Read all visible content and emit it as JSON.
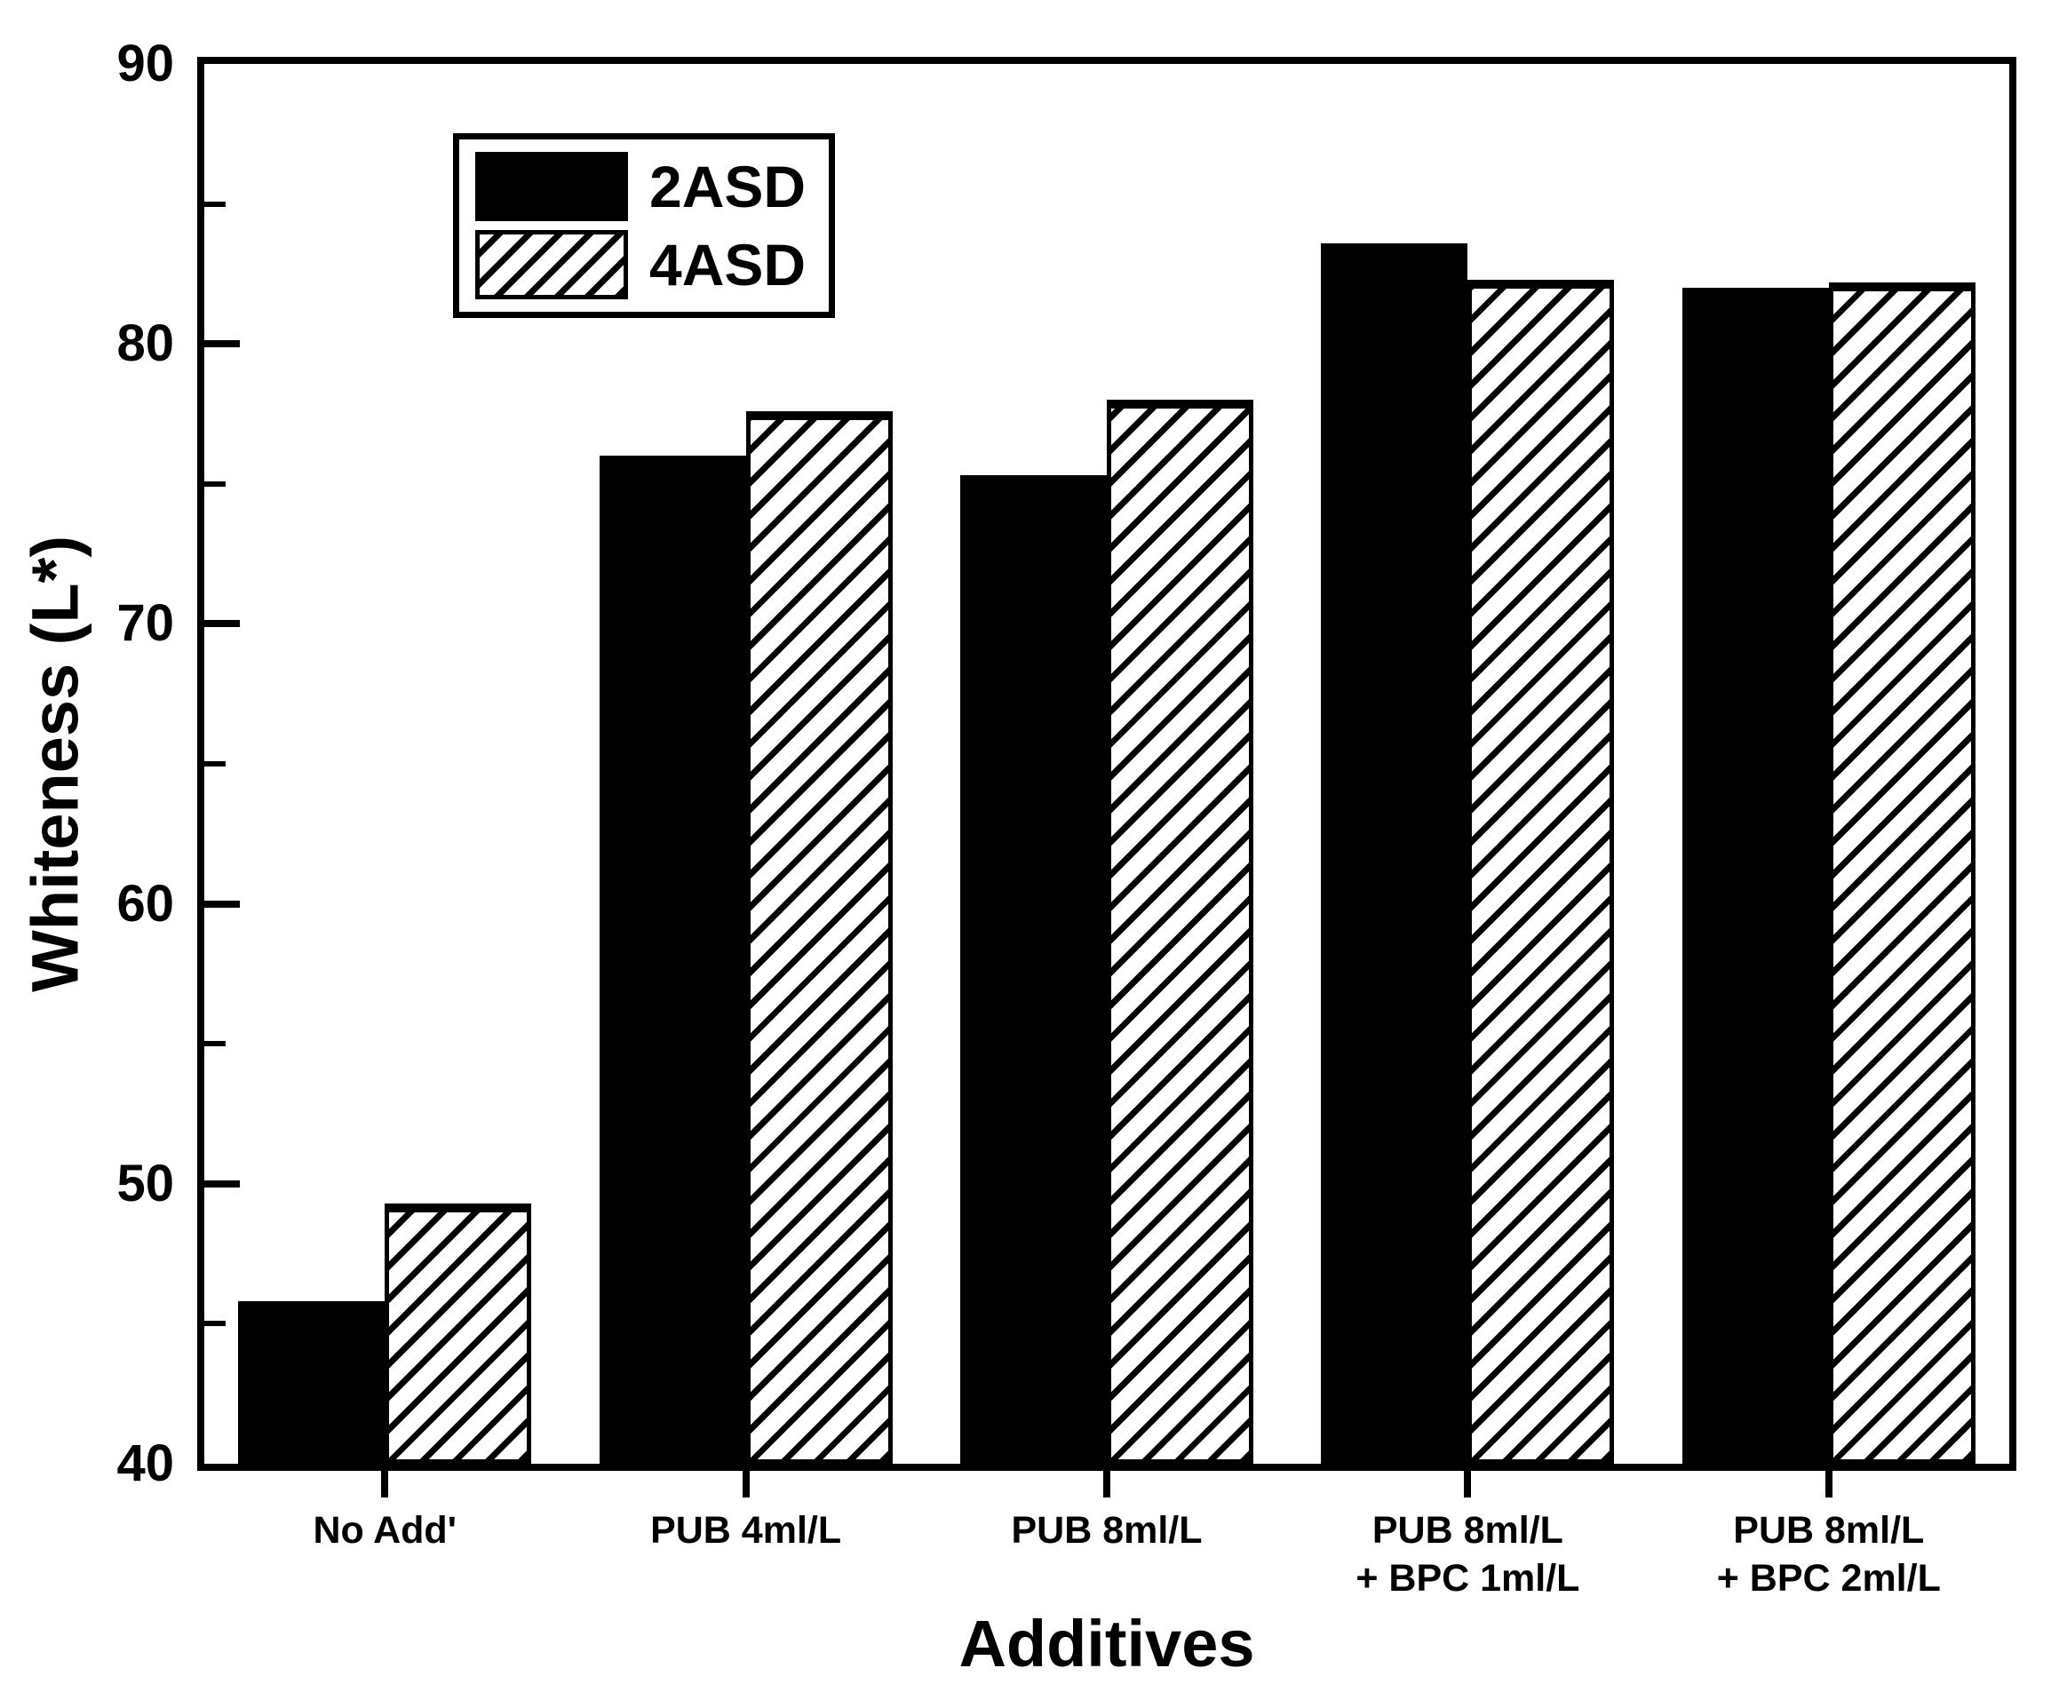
{
  "figure": {
    "background_color": "#ffffff",
    "frame_color": "#000000",
    "text_color": "#000000"
  },
  "chart_data": {
    "type": "bar",
    "title": "",
    "xlabel": "Additives",
    "ylabel": "Whiteness (L*)",
    "ylim": [
      40,
      90
    ],
    "y_major_step": 10,
    "y_minor_step": 5,
    "y_tick_labels": [
      "40",
      "50",
      "60",
      "70",
      "80",
      "90"
    ],
    "grid": false,
    "legend_position": "top-left-inside",
    "categories": [
      "No Add'",
      "PUB 4ml/L",
      "PUB 8ml/L",
      "PUB 8ml/L\n+ BPC 1ml/L",
      "PUB 8ml/L\n+ BPC 2ml/L"
    ],
    "series": [
      {
        "name": "2ASD",
        "style": "solid-black",
        "color": "#000000",
        "values": [
          45.8,
          76.0,
          75.3,
          83.6,
          82.0
        ]
      },
      {
        "name": "4ASD",
        "style": "diagonal-hatch",
        "color": "#000000",
        "hatch": "/",
        "values": [
          49.3,
          77.6,
          78.0,
          82.3,
          82.2
        ]
      }
    ]
  }
}
